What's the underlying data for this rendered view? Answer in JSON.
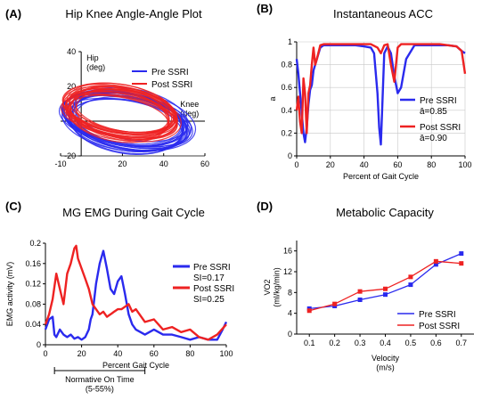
{
  "colors": {
    "pre": "#2a2aee",
    "post": "#ee2222",
    "axis": "#000000",
    "grid": "#c8c8c8"
  },
  "chart_data": [
    {
      "id": "A",
      "panel_label": "(A)",
      "type": "line",
      "title": "Hip Knee Angle-Angle Plot",
      "xlabel": "Knee\n(deg)",
      "ylabel": "Hip\n(deg)",
      "xlim": [
        -10,
        60
      ],
      "ylim": [
        -20,
        40
      ],
      "xticks": [
        -10,
        20,
        40,
        60
      ],
      "yticks": [
        -20,
        20,
        40
      ],
      "grid": false,
      "legend_position": "top-right",
      "series": [
        {
          "name": "Pre SSRI",
          "color_key": "pre",
          "cycles": 20,
          "loop": {
            "cx": 22,
            "cy": 0,
            "rx": 30,
            "ry": 15,
            "tilt": -0.22
          }
        },
        {
          "name": "Post SSRI",
          "color_key": "post",
          "cycles": 20,
          "loop": {
            "cx": 20,
            "cy": 5,
            "rx": 27,
            "ry": 13,
            "tilt": -0.22
          }
        }
      ]
    },
    {
      "id": "B",
      "panel_label": "(B)",
      "type": "line",
      "title": "Instantaneous ACC",
      "xlabel": "Percent of Gait Cycle",
      "ylabel": "a",
      "xlim": [
        0,
        100
      ],
      "ylim": [
        0,
        1
      ],
      "xticks": [
        0,
        20,
        40,
        60,
        80,
        100
      ],
      "yticks": [
        0,
        0.2,
        0.4,
        0.6,
        0.8,
        1
      ],
      "grid": true,
      "legend_position": "right",
      "series": [
        {
          "name": "Pre SSRI",
          "sublabel": "ā=0.85",
          "color_key": "pre",
          "x": [
            0,
            1,
            2,
            3,
            4,
            5,
            6,
            7,
            8,
            9,
            10,
            12,
            14,
            16,
            18,
            20,
            25,
            30,
            35,
            40,
            44,
            46,
            48,
            49,
            50,
            51,
            52,
            54,
            56,
            58,
            60,
            62,
            65,
            70,
            75,
            80,
            85,
            90,
            95,
            98,
            100
          ],
          "values": [
            0.85,
            0.72,
            0.55,
            0.38,
            0.2,
            0.12,
            0.25,
            0.45,
            0.58,
            0.62,
            0.75,
            0.85,
            0.95,
            0.97,
            0.97,
            0.97,
            0.97,
            0.97,
            0.97,
            0.96,
            0.95,
            0.9,
            0.55,
            0.25,
            0.1,
            0.5,
            0.9,
            0.96,
            0.9,
            0.7,
            0.55,
            0.6,
            0.85,
            0.97,
            0.97,
            0.97,
            0.97,
            0.97,
            0.96,
            0.92,
            0.9
          ]
        },
        {
          "name": "Post SSRI",
          "sublabel": "ā=0.90",
          "color_key": "post",
          "x": [
            0,
            1,
            2,
            3,
            4,
            5,
            6,
            7,
            8,
            9,
            10,
            11,
            12,
            14,
            16,
            18,
            20,
            25,
            30,
            35,
            40,
            44,
            48,
            50,
            52,
            54,
            56,
            58,
            60,
            62,
            65,
            70,
            75,
            80,
            85,
            90,
            95,
            98,
            100
          ],
          "values": [
            0.4,
            0.52,
            0.3,
            0.2,
            0.68,
            0.55,
            0.2,
            0.55,
            0.62,
            0.8,
            0.95,
            0.8,
            0.85,
            0.97,
            0.98,
            0.98,
            0.98,
            0.98,
            0.98,
            0.98,
            0.98,
            0.98,
            0.95,
            0.9,
            0.97,
            0.98,
            0.8,
            0.65,
            0.95,
            0.98,
            0.98,
            0.98,
            0.98,
            0.98,
            0.98,
            0.97,
            0.96,
            0.92,
            0.72
          ]
        }
      ]
    },
    {
      "id": "C",
      "panel_label": "(C)",
      "type": "line",
      "title": "MG EMG During Gait Cycle",
      "xlabel": "Percent Gait Cycle",
      "ylabel": "EMG activity (mV)",
      "xlim": [
        0,
        100
      ],
      "ylim": [
        0,
        0.2
      ],
      "xticks": [
        0,
        20,
        40,
        60,
        80,
        100
      ],
      "yticks": [
        0,
        0.04,
        0.08,
        0.12,
        0.16,
        0.2
      ],
      "grid": false,
      "legend_position": "right",
      "annotation": {
        "text": "Normative On Time\n(5-55%)",
        "x_start": 5,
        "x_end": 55
      },
      "series": [
        {
          "name": "Pre SSRI",
          "sublabel": "SI=0.17",
          "color_key": "pre",
          "x": [
            0,
            2,
            4,
            5,
            6,
            8,
            10,
            12,
            14,
            16,
            18,
            20,
            22,
            24,
            25,
            26,
            28,
            30,
            32,
            34,
            36,
            38,
            40,
            42,
            44,
            46,
            48,
            50,
            55,
            60,
            65,
            70,
            75,
            80,
            85,
            90,
            95,
            98,
            100
          ],
          "values": [
            0.03,
            0.05,
            0.055,
            0.02,
            0.015,
            0.03,
            0.02,
            0.015,
            0.02,
            0.012,
            0.015,
            0.01,
            0.015,
            0.03,
            0.05,
            0.06,
            0.12,
            0.16,
            0.185,
            0.15,
            0.11,
            0.1,
            0.125,
            0.135,
            0.1,
            0.06,
            0.04,
            0.03,
            0.02,
            0.03,
            0.02,
            0.02,
            0.015,
            0.01,
            0.015,
            0.01,
            0.01,
            0.03,
            0.045
          ]
        },
        {
          "name": "Post SSRI",
          "sublabel": "SI=0.25",
          "color_key": "post",
          "x": [
            0,
            2,
            4,
            6,
            8,
            10,
            12,
            14,
            16,
            17,
            18,
            20,
            22,
            24,
            26,
            28,
            30,
            32,
            34,
            36,
            38,
            40,
            42,
            44,
            46,
            48,
            50,
            55,
            60,
            65,
            70,
            75,
            80,
            85,
            90,
            95,
            100
          ],
          "values": [
            0.04,
            0.06,
            0.09,
            0.14,
            0.11,
            0.08,
            0.14,
            0.16,
            0.19,
            0.195,
            0.17,
            0.15,
            0.13,
            0.11,
            0.08,
            0.07,
            0.06,
            0.065,
            0.055,
            0.06,
            0.065,
            0.07,
            0.07,
            0.075,
            0.08,
            0.065,
            0.07,
            0.045,
            0.05,
            0.03,
            0.035,
            0.025,
            0.03,
            0.015,
            0.01,
            0.02,
            0.04
          ]
        }
      ]
    },
    {
      "id": "D",
      "panel_label": "(D)",
      "type": "line",
      "title": "Metabolic Capacity",
      "xlabel": "Velocity\n(m/s)",
      "ylabel": "VO2\n(ml/kg/min)",
      "xlim": [
        0.05,
        0.75
      ],
      "ylim": [
        0,
        18
      ],
      "xticks": [
        0.1,
        0.2,
        0.3,
        0.4,
        0.5,
        0.6,
        0.7
      ],
      "yticks": [
        0,
        4,
        8,
        12,
        16
      ],
      "grid": false,
      "legend_position": "bottom-right",
      "markers": true,
      "x": [
        0.1,
        0.2,
        0.3,
        0.4,
        0.5,
        0.6,
        0.7
      ],
      "series": [
        {
          "name": "Pre SSRI",
          "color_key": "pre",
          "values": [
            4.9,
            5.4,
            6.6,
            7.6,
            9.5,
            13.4,
            15.5
          ]
        },
        {
          "name": "Post SSRI",
          "color_key": "post",
          "values": [
            4.5,
            5.8,
            8.2,
            8.7,
            11.0,
            14.0,
            13.6
          ]
        }
      ]
    }
  ]
}
